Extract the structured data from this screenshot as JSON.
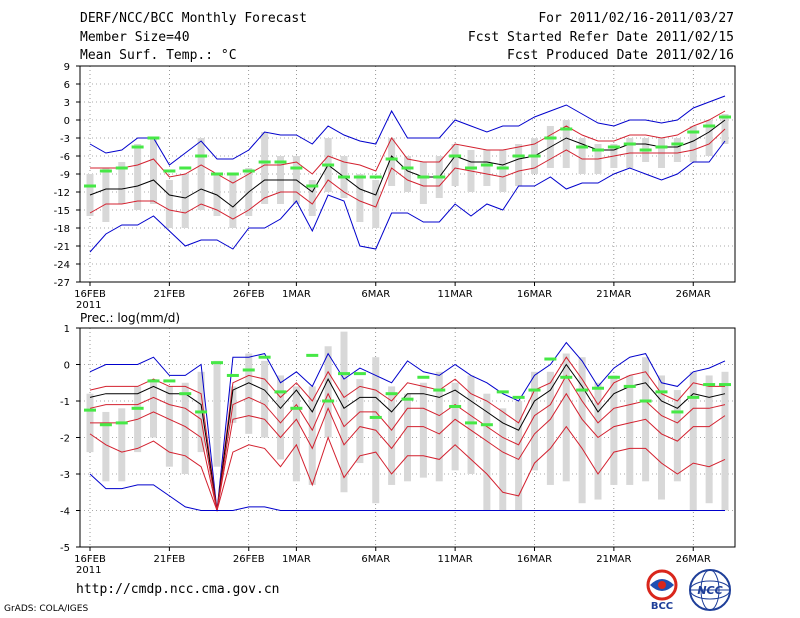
{
  "header": {
    "title": "DERF/NCC/BCC Monthly Forecast",
    "member_size": "Member Size=40",
    "variable": "Mean Surf. Temp.: °C",
    "period": "For 2011/02/16-2011/03/27",
    "started": "Fcst Started Refer Date 2011/02/15",
    "produced": "Fcst Produced Date 2011/02/16"
  },
  "footer": {
    "url": "http://cmdp.ncc.cma.gov.cn",
    "credit": "GrADS: COLA/IGES",
    "logo_left": "BCC",
    "logo_right": "NCC"
  },
  "colors": {
    "mean": "#000000",
    "spread": "#d3212f",
    "extreme": "#0000cc",
    "box": "#d8d8d8",
    "marker": "#46e846"
  },
  "chart_data": [
    {
      "type": "line",
      "title": "Mean Surf. Temp.: °C",
      "ylim": [
        -27,
        9
      ],
      "yticks": [
        9,
        6,
        3,
        0,
        -3,
        -6,
        -9,
        -12,
        -15,
        -18,
        -21,
        -24,
        -27
      ],
      "xticks": [
        {
          "day": 1,
          "label": "16FEB",
          "sub": "2011"
        },
        {
          "day": 6,
          "label": "21FEB"
        },
        {
          "day": 11,
          "label": "26FEB"
        },
        {
          "day": 14,
          "label": "1MAR"
        },
        {
          "day": 19,
          "label": "6MAR"
        },
        {
          "day": 24,
          "label": "11MAR"
        },
        {
          "day": 29,
          "label": "16MAR"
        },
        {
          "day": 34,
          "label": "21MAR"
        },
        {
          "day": 39,
          "label": "26MAR"
        }
      ],
      "days": [
        1,
        2,
        3,
        4,
        5,
        6,
        7,
        8,
        9,
        10,
        11,
        12,
        13,
        14,
        15,
        16,
        17,
        18,
        19,
        20,
        21,
        22,
        23,
        24,
        25,
        26,
        27,
        28,
        29,
        30,
        31,
        32,
        33,
        34,
        35,
        36,
        37,
        38,
        39,
        40,
        41
      ],
      "series": [
        {
          "name": "max",
          "values": [
            -4,
            -5.5,
            -5,
            -3,
            -3,
            -7.5,
            -5.5,
            -3.5,
            -6.5,
            -6.5,
            -5,
            -2,
            -2.5,
            -2.5,
            -4,
            -1,
            -2.5,
            -3.5,
            -4,
            1.5,
            -3,
            -3,
            -3,
            0,
            -1,
            -2,
            -1,
            -1,
            0.5,
            1.5,
            2.5,
            1,
            -0.5,
            -1,
            0,
            0,
            -0.5,
            0,
            2,
            3,
            4
          ]
        },
        {
          "name": "upper",
          "values": [
            -8,
            -8,
            -8,
            -7.5,
            -6.5,
            -9.5,
            -9,
            -7.5,
            -9,
            -10.5,
            -9,
            -7.5,
            -7.5,
            -7,
            -9,
            -6,
            -7,
            -7.5,
            -8.5,
            -3,
            -6.5,
            -7,
            -7,
            -4,
            -4.5,
            -5,
            -5,
            -4.5,
            -4,
            -2.5,
            -1,
            -2.5,
            -3.5,
            -3.5,
            -2.5,
            -2.5,
            -3,
            -2.5,
            -1,
            0,
            1.5
          ]
        },
        {
          "name": "mean",
          "values": [
            -12.5,
            -11.5,
            -11.5,
            -11,
            -10,
            -12.5,
            -13,
            -11.5,
            -12.5,
            -14.5,
            -12,
            -10,
            -10,
            -10,
            -12,
            -7.5,
            -9.5,
            -11.5,
            -12.5,
            -6,
            -8.5,
            -9.5,
            -9.5,
            -6,
            -7,
            -7,
            -7.5,
            -6.5,
            -6,
            -4.5,
            -3,
            -4,
            -5,
            -5,
            -4,
            -4,
            -4.5,
            -4.5,
            -3.5,
            -2,
            0
          ]
        },
        {
          "name": "lower",
          "values": [
            -15.5,
            -14,
            -14,
            -13.5,
            -13.5,
            -15,
            -15.5,
            -14,
            -15,
            -16.5,
            -15,
            -13,
            -12,
            -12,
            -14,
            -10,
            -12,
            -13.5,
            -14.5,
            -8,
            -10,
            -11,
            -11,
            -8,
            -8.5,
            -9,
            -9.5,
            -8.5,
            -8,
            -6.5,
            -5,
            -6.5,
            -6.5,
            -6,
            -5.5,
            -5.5,
            -5.5,
            -5.5,
            -5,
            -4,
            -1.5
          ]
        },
        {
          "name": "min",
          "values": [
            -22,
            -19,
            -17.5,
            -17.5,
            -16,
            -18.5,
            -21,
            -20,
            -20,
            -21.5,
            -18,
            -18,
            -16.5,
            -13.5,
            -18.5,
            -12.5,
            -13.5,
            -21,
            -21.5,
            -15.5,
            -15.5,
            -17,
            -17,
            -14,
            -16,
            -14,
            -15,
            -11,
            -11,
            -9.5,
            -11.5,
            -10.5,
            -10.5,
            -9,
            -8,
            -9,
            -10,
            -9,
            -7,
            -7,
            -3.5
          ]
        }
      ],
      "boxes": {
        "low": [
          -16,
          -17,
          -14,
          -15,
          -14,
          -18,
          -18,
          -15,
          -16,
          -18,
          -16,
          -14,
          -14,
          -14,
          -16,
          -12,
          -13,
          -17,
          -18,
          -11,
          -12,
          -14,
          -13,
          -11,
          -12,
          -11,
          -12,
          -11,
          -9,
          -8,
          -8,
          -9,
          -9,
          -8,
          -8,
          -7,
          -8,
          -7,
          -7,
          -6,
          -4
        ],
        "high": [
          -9,
          -8,
          -7,
          -4,
          -3,
          -10,
          -9,
          -3,
          -9,
          -9,
          -8,
          -2,
          -6,
          -6,
          -10,
          -3,
          -6,
          -9,
          -10,
          -3,
          -6,
          -7,
          -6,
          -4,
          -5,
          -5,
          -5,
          -4,
          -3,
          -1,
          0,
          -3,
          -4,
          -4,
          -3,
          -3,
          -3,
          -3,
          -1,
          0,
          1
        ]
      },
      "markers": [
        -11,
        -8.5,
        -8,
        -4.5,
        -3,
        -8.5,
        -8,
        -6,
        -9,
        -9,
        -8.5,
        -7,
        -7,
        -8,
        -11,
        -7.5,
        -9.5,
        -9.5,
        -9.5,
        -6.5,
        -8,
        -9.5,
        -9.5,
        -6,
        -8,
        -7.5,
        -8,
        -6,
        -6,
        -3,
        -1.5,
        -4.5,
        -5,
        -4.5,
        -4,
        -5,
        -4.5,
        -4,
        -2,
        -1,
        0.5
      ]
    },
    {
      "type": "line",
      "title": "Prec.: log(mm/d)",
      "ylim": [
        -5,
        1
      ],
      "yticks": [
        1,
        0,
        -1,
        -2,
        -3,
        -4,
        -5
      ],
      "xticks": [
        {
          "day": 1,
          "label": "16FEB",
          "sub": "2011"
        },
        {
          "day": 6,
          "label": "21FEB"
        },
        {
          "day": 11,
          "label": "26FEB"
        },
        {
          "day": 14,
          "label": "1MAR"
        },
        {
          "day": 19,
          "label": "6MAR"
        },
        {
          "day": 24,
          "label": "11MAR"
        },
        {
          "day": 29,
          "label": "16MAR"
        },
        {
          "day": 34,
          "label": "21MAR"
        },
        {
          "day": 39,
          "label": "26MAR"
        }
      ],
      "days": [
        1,
        2,
        3,
        4,
        5,
        6,
        7,
        8,
        9,
        10,
        11,
        12,
        13,
        14,
        15,
        16,
        17,
        18,
        19,
        20,
        21,
        22,
        23,
        24,
        25,
        26,
        27,
        28,
        29,
        30,
        31,
        32,
        33,
        34,
        35,
        36,
        37,
        38,
        39,
        40,
        41
      ],
      "series": [
        {
          "name": "max",
          "values": [
            -0.2,
            0,
            0,
            0,
            0.2,
            -0.3,
            -0.3,
            0,
            -4,
            0.2,
            0.2,
            0.3,
            -0.5,
            -0.2,
            -0.6,
            0.3,
            -0.4,
            -0.1,
            -0.3,
            -0.5,
            0.1,
            -0.2,
            -0.3,
            0,
            -0.3,
            -0.5,
            -0.8,
            -1,
            -0.3,
            0,
            0.6,
            0.1,
            -0.6,
            -0.1,
            0.2,
            0.3,
            -0.5,
            -0.6,
            -0.2,
            -0.1,
            0.1
          ]
        },
        {
          "name": "upper",
          "values": [
            -0.7,
            -0.6,
            -0.6,
            -0.6,
            -0.4,
            -0.6,
            -0.6,
            -0.8,
            -4,
            -0.5,
            -0.3,
            -0.4,
            -0.9,
            -0.5,
            -1,
            -0.2,
            -0.9,
            -0.6,
            -0.7,
            -1,
            -0.5,
            -0.6,
            -0.7,
            -0.4,
            -0.8,
            -1,
            -1.3,
            -1.6,
            -0.7,
            -0.5,
            0.2,
            -0.4,
            -1.1,
            -0.5,
            -0.3,
            -0.2,
            -0.8,
            -1,
            -0.5,
            -0.6,
            -0.6
          ]
        },
        {
          "name": "mean",
          "values": [
            -0.9,
            -0.8,
            -0.8,
            -0.8,
            -0.6,
            -0.8,
            -0.8,
            -1.1,
            -4,
            -0.7,
            -0.5,
            -0.7,
            -1.2,
            -0.7,
            -1.3,
            -0.4,
            -1.2,
            -0.9,
            -0.9,
            -1.3,
            -0.8,
            -0.8,
            -0.9,
            -0.7,
            -1,
            -1.3,
            -1.6,
            -1.8,
            -1,
            -0.7,
            0,
            -0.6,
            -1.3,
            -0.8,
            -0.6,
            -0.5,
            -1,
            -1.2,
            -0.8,
            -0.9,
            -0.8
          ]
        },
        {
          "name": "lower",
          "values": [
            -1.2,
            -1.1,
            -1.1,
            -1.1,
            -0.9,
            -1.1,
            -1.2,
            -1.5,
            -4,
            -1.1,
            -0.9,
            -1.1,
            -1.6,
            -1.1,
            -1.8,
            -0.8,
            -1.7,
            -1.3,
            -1.3,
            -1.8,
            -1.2,
            -1.2,
            -1.4,
            -1.1,
            -1.4,
            -1.7,
            -2,
            -2.2,
            -1.4,
            -1.1,
            -0.3,
            -1,
            -1.6,
            -1.2,
            -1.1,
            -1,
            -1.4,
            -1.6,
            -1.2,
            -1.2,
            -1.1
          ]
        },
        {
          "name": "lower2",
          "values": [
            -1.6,
            -1.6,
            -1.6,
            -1.5,
            -1.3,
            -1.5,
            -1.7,
            -2,
            -4,
            -1.5,
            -1.4,
            -1.5,
            -2,
            -1.5,
            -2.3,
            -1.2,
            -2.2,
            -1.7,
            -1.8,
            -2.3,
            -1.7,
            -1.7,
            -1.9,
            -1.5,
            -1.8,
            -2.1,
            -2.4,
            -2.6,
            -1.9,
            -1.5,
            -0.8,
            -1.5,
            -2,
            -1.7,
            -1.6,
            -1.5,
            -1.9,
            -2.1,
            -1.7,
            -1.7,
            -1.4
          ]
        },
        {
          "name": "lower3",
          "values": [
            -1.9,
            -2.2,
            -2.4,
            -2.3,
            -2.1,
            -2.4,
            -2.5,
            -2.8,
            -4,
            -2.4,
            -2.2,
            -2.3,
            -2.8,
            -2.2,
            -3.3,
            -2,
            -3.1,
            -2.5,
            -2.4,
            -3,
            -2.5,
            -2.5,
            -2.6,
            -2.2,
            -2.6,
            -3,
            -3.5,
            -3.6,
            -2.7,
            -2.3,
            -1.7,
            -2.3,
            -3,
            -2.4,
            -2.3,
            -2.3,
            -2.7,
            -3,
            -2.7,
            -2.8,
            -2.6
          ]
        },
        {
          "name": "min",
          "values": [
            -3,
            -3.4,
            -3.4,
            -3.3,
            -3.3,
            -3.6,
            -3.9,
            -4,
            -4,
            -4,
            -3.9,
            -3.9,
            -4,
            -4,
            -4,
            -4,
            -4,
            -4,
            -4,
            -4,
            -4,
            -4,
            -4,
            -4,
            -4,
            -4,
            -4,
            -4,
            -4,
            -4,
            -4,
            -4,
            -4,
            -4,
            -4,
            -4,
            -4,
            -4,
            -4,
            -4,
            -4
          ]
        }
      ],
      "boxes": {
        "low": [
          -2.4,
          -3.2,
          -3.2,
          -2.4,
          -2,
          -2.8,
          -3,
          -2.4,
          -2.8,
          -1.6,
          -1.9,
          -2,
          -2.6,
          -3.2,
          -3.3,
          -2,
          -3.5,
          -2.7,
          -3.8,
          -3.3,
          -3.2,
          -3.1,
          -3.2,
          -2.9,
          -3,
          -4,
          -4,
          -4,
          -2.9,
          -3.3,
          -3.2,
          -3.8,
          -3.7,
          -3.3,
          -3.3,
          -3.2,
          -3.7,
          -3.2,
          -4,
          -3.8,
          -4
        ],
        "high": [
          -0.8,
          -1.3,
          -1.2,
          -0.6,
          -0.4,
          -0.6,
          -0.5,
          -0.2,
          0.1,
          -0.6,
          0.3,
          0.1,
          -0.3,
          -0.6,
          -0.6,
          0.5,
          0.9,
          -0.4,
          0.2,
          -0.6,
          -0.8,
          -0.5,
          -0.2,
          -0.5,
          -0.3,
          -0.8,
          -1.2,
          -1,
          -0.2,
          -0.2,
          0.3,
          0.2,
          -0.5,
          -0.3,
          -0.3,
          0.2,
          -0.3,
          -0.7,
          -0.2,
          -0.3,
          -0.2
        ]
      },
      "markers": [
        -1.25,
        -1.65,
        -1.6,
        -1.2,
        -0.45,
        -0.45,
        -0.8,
        -1.3,
        0.05,
        -0.3,
        -0.15,
        0.2,
        -0.75,
        -1.2,
        0.25,
        -1,
        -0.25,
        -0.25,
        -1.45,
        -0.8,
        -0.95,
        -0.35,
        -0.7,
        -1.15,
        -1.6,
        -1.65,
        -0.75,
        -0.9,
        -0.7,
        0.15,
        -0.35,
        -0.7,
        -0.65,
        -0.35,
        -0.6,
        -1,
        -0.75,
        -1.3,
        -0.9,
        -0.55,
        -0.55
      ]
    }
  ]
}
